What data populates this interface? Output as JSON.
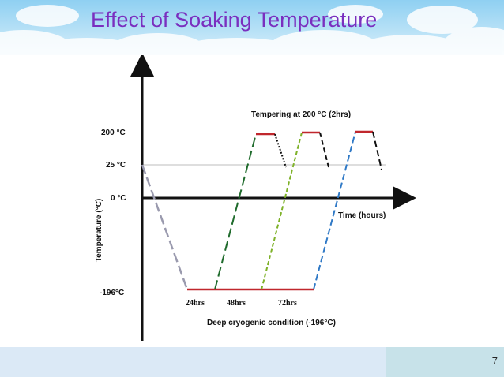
{
  "slide": {
    "title": "Effect of Soaking Temperature",
    "number": "7"
  },
  "diagram": {
    "y_axis_title": "Temperature (°C)",
    "x_axis_title": "Time (hours)",
    "bottom_caption": "Deep cryogenic condition (-196°C)",
    "tempering_label": "Tempering at 200 °C (2hrs)",
    "temperature_levels": [
      {
        "value": 200,
        "label": "200 °C"
      },
      {
        "value": 25,
        "label": "25 °C"
      },
      {
        "value": 0,
        "label": "0 °C"
      },
      {
        "value": -196,
        "label": "-196°C"
      }
    ],
    "soak_durations": [
      {
        "label": "24hrs",
        "color": "#1f6b2c"
      },
      {
        "label": "48hrs",
        "color": "#7fb22a"
      },
      {
        "label": "72hrs",
        "color": "#2f79c6"
      }
    ],
    "colors": {
      "cooling_line": "#9a9aae",
      "soak_line": "#c0272d",
      "tempering_segment": "#c0272d",
      "return_line": "#111111",
      "reference_line": "#bdbdbd",
      "axis": "#111111"
    }
  }
}
